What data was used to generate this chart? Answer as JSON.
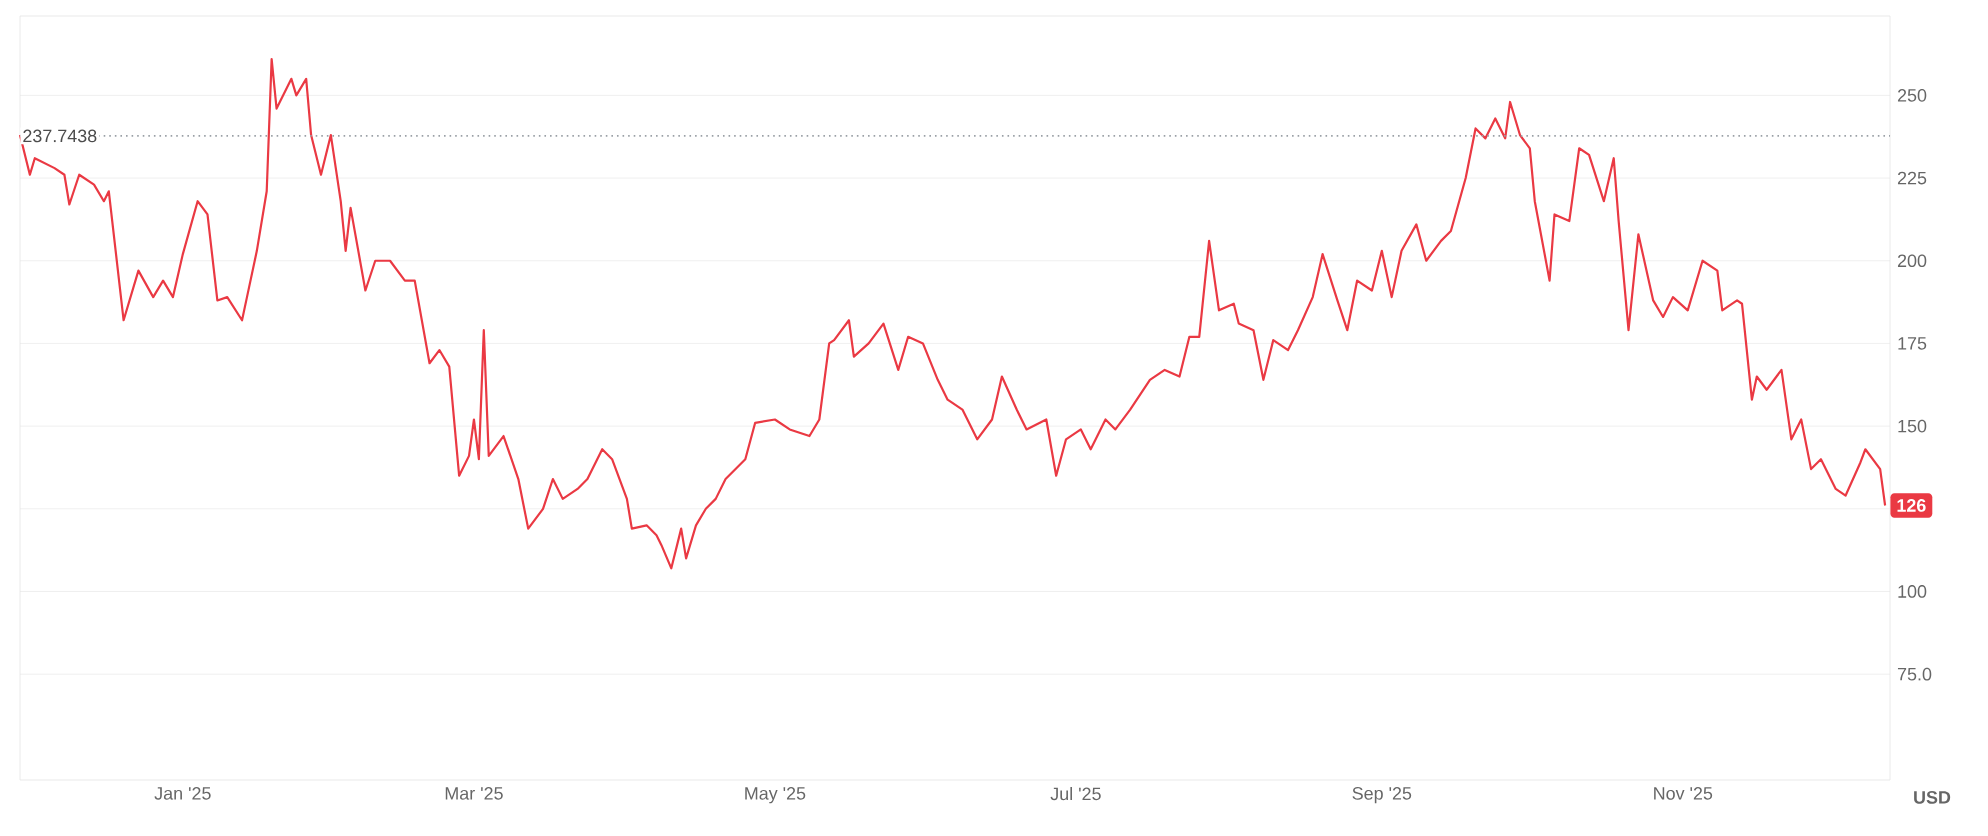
{
  "chart_data": {
    "type": "line",
    "ylabel": "USD",
    "xlim": [
      "2024-11-29",
      "2025-12-13"
    ],
    "ylim": [
      43,
      274
    ],
    "xticks": [
      {
        "value": "2025-01-01",
        "label": "Jan '25"
      },
      {
        "value": "2025-03-01",
        "label": "Mar '25"
      },
      {
        "value": "2025-05-01",
        "label": "May '25"
      },
      {
        "value": "2025-07-01",
        "label": "Jul '25"
      },
      {
        "value": "2025-09-01",
        "label": "Sep '25"
      },
      {
        "value": "2025-11-01",
        "label": "Nov '25"
      }
    ],
    "yticks": [
      {
        "value": 75,
        "label": "75.0"
      },
      100,
      {
        "value": 125,
        "label": null
      },
      150,
      175,
      200,
      225,
      250
    ],
    "grid": "y",
    "ref_lines": [
      {
        "axis": "y",
        "value": 237.7438,
        "label": "237.7438",
        "color": "#9aa0a6",
        "line_style": "dotted"
      }
    ],
    "annotations": [
      "126"
    ],
    "x": [
      "2024-11-29",
      "2024-12-01",
      "2024-12-02",
      "2024-12-06",
      "2024-12-08",
      "2024-12-09",
      "2024-12-11",
      "2024-12-14",
      "2024-12-16",
      "2024-12-17",
      "2024-12-19",
      "2024-12-20",
      "2024-12-23",
      "2024-12-26",
      "2024-12-28",
      "2024-12-30",
      "2025-01-01",
      "2025-01-04",
      "2025-01-06",
      "2025-01-08",
      "2025-01-10",
      "2025-01-13",
      "2025-01-14",
      "2025-01-16",
      "2025-01-18",
      "2025-01-19",
      "2025-01-20",
      "2025-01-23",
      "2025-01-24",
      "2025-01-26",
      "2025-01-27",
      "2025-01-29",
      "2025-01-31",
      "2025-02-02",
      "2025-02-03",
      "2025-02-04",
      "2025-02-07",
      "2025-02-09",
      "2025-02-12",
      "2025-02-15",
      "2025-02-17",
      "2025-02-20",
      "2025-02-22",
      "2025-02-24",
      "2025-02-26",
      "2025-02-28",
      "2025-03-01",
      "2025-03-02",
      "2025-03-03",
      "2025-03-04",
      "2025-03-07",
      "2025-03-10",
      "2025-03-12",
      "2025-03-15",
      "2025-03-17",
      "2025-03-19",
      "2025-03-22",
      "2025-03-24",
      "2025-03-27",
      "2025-03-29",
      "2025-04-01",
      "2025-04-02",
      "2025-04-05",
      "2025-04-07",
      "2025-04-08",
      "2025-04-10",
      "2025-04-12",
      "2025-04-13",
      "2025-04-15",
      "2025-04-17",
      "2025-04-19",
      "2025-04-21",
      "2025-04-25",
      "2025-04-27",
      "2025-05-01",
      "2025-05-04",
      "2025-05-08",
      "2025-05-10",
      "2025-05-12",
      "2025-05-13",
      "2025-05-16",
      "2025-05-17",
      "2025-05-20",
      "2025-05-23",
      "2025-05-26",
      "2025-05-28",
      "2025-05-31",
      "2025-06-03",
      "2025-06-05",
      "2025-06-08",
      "2025-06-11",
      "2025-06-14",
      "2025-06-16",
      "2025-06-19",
      "2025-06-21",
      "2025-06-25",
      "2025-06-27",
      "2025-06-29",
      "2025-07-02",
      "2025-07-04",
      "2025-07-07",
      "2025-07-09",
      "2025-07-12",
      "2025-07-16",
      "2025-07-19",
      "2025-07-22",
      "2025-07-24",
      "2025-07-26",
      "2025-07-28",
      "2025-07-30",
      "2025-08-02",
      "2025-08-03",
      "2025-08-06",
      "2025-08-08",
      "2025-08-10",
      "2025-08-13",
      "2025-08-15",
      "2025-08-18",
      "2025-08-20",
      "2025-08-23",
      "2025-08-25",
      "2025-08-27",
      "2025-08-30",
      "2025-09-01",
      "2025-09-03",
      "2025-09-05",
      "2025-09-08",
      "2025-09-10",
      "2025-09-13",
      "2025-09-15",
      "2025-09-18",
      "2025-09-20",
      "2025-09-22",
      "2025-09-24",
      "2025-09-26",
      "2025-09-27",
      "2025-09-29",
      "2025-10-01",
      "2025-10-02",
      "2025-10-05",
      "2025-10-06",
      "2025-10-09",
      "2025-10-11",
      "2025-10-13",
      "2025-10-16",
      "2025-10-18",
      "2025-10-19",
      "2025-10-21",
      "2025-10-23",
      "2025-10-26",
      "2025-10-28",
      "2025-10-30",
      "2025-11-02",
      "2025-11-05",
      "2025-11-08",
      "2025-11-09",
      "2025-11-12",
      "2025-11-13",
      "2025-11-15",
      "2025-11-16",
      "2025-11-18",
      "2025-11-20",
      "2025-11-21",
      "2025-11-23",
      "2025-11-25",
      "2025-11-27",
      "2025-11-29",
      "2025-12-02",
      "2025-12-04",
      "2025-12-07",
      "2025-12-08",
      "2025-12-11",
      "2025-12-12"
    ],
    "series": [
      {
        "color": "#ea3943",
        "values": [
          238,
          226,
          231,
          228,
          226,
          217,
          226,
          223,
          218,
          221,
          195,
          182,
          197,
          189,
          194,
          189,
          202,
          218,
          214,
          188,
          189,
          182,
          189,
          203,
          221,
          261,
          246,
          255,
          250,
          255,
          238,
          226,
          238,
          218,
          203,
          216,
          191,
          200,
          200,
          194,
          194,
          169,
          173,
          168,
          135,
          141,
          152,
          140,
          179,
          141,
          147,
          134,
          119,
          125,
          134,
          128,
          131,
          134,
          143,
          140,
          128,
          119,
          120,
          117,
          114,
          107,
          119,
          110,
          120,
          125,
          128,
          134,
          140,
          151,
          152,
          149,
          147,
          152,
          175,
          176,
          182,
          171,
          175,
          181,
          167,
          177,
          175,
          164,
          158,
          155,
          146,
          152,
          165,
          155,
          149,
          152,
          135,
          146,
          149,
          143,
          152,
          149,
          155,
          164,
          167,
          165,
          177,
          177,
          206,
          185,
          187,
          181,
          179,
          164,
          176,
          173,
          179,
          189,
          202,
          188,
          179,
          194,
          191,
          203,
          189,
          203,
          211,
          200,
          206,
          209,
          225,
          240,
          237,
          243,
          237,
          248,
          238,
          234,
          218,
          194,
          214,
          212,
          234,
          232,
          218,
          231,
          212,
          179,
          208,
          188,
          183,
          189,
          185,
          200,
          197,
          185,
          188,
          187,
          158,
          165,
          161,
          165,
          167,
          146,
          152,
          137,
          140,
          131,
          129,
          139,
          143,
          137,
          126
        ]
      }
    ]
  }
}
